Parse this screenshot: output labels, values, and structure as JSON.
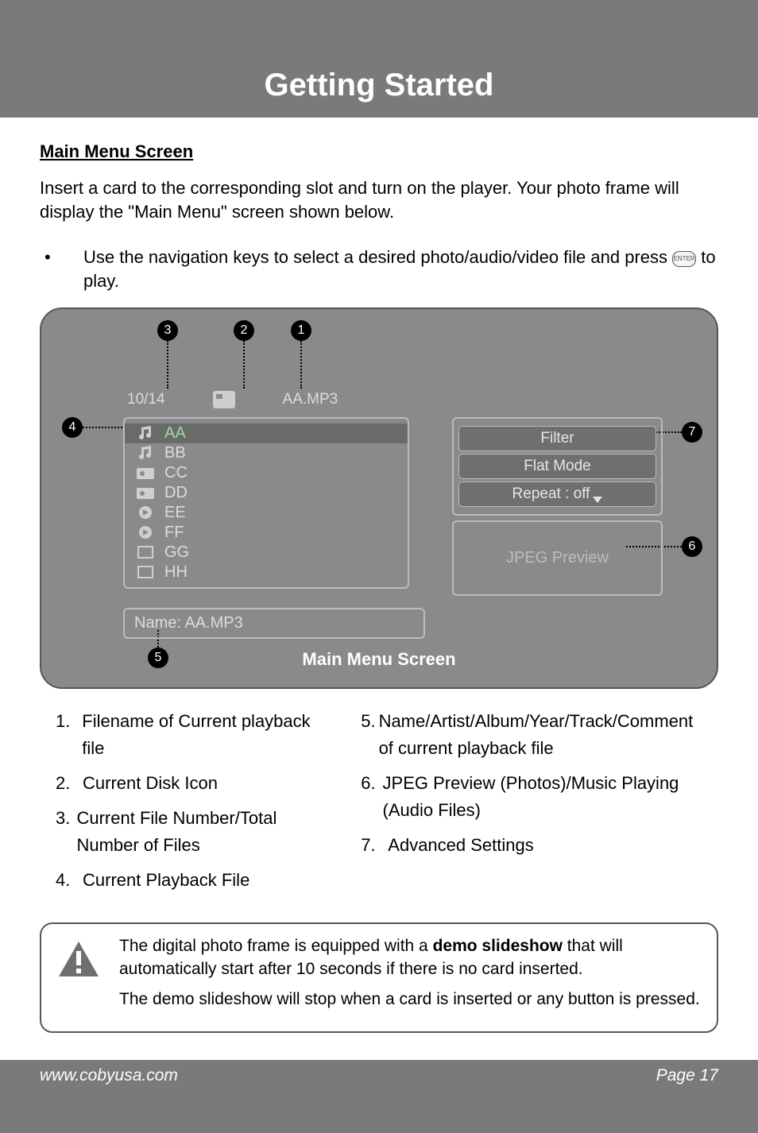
{
  "title": "Getting Started",
  "section_heading": "Main Menu Screen",
  "intro_para": "Insert a card to the corresponding slot and turn on the player. Your photo frame will display the \"Main Menu\" screen shown below.",
  "bullet_text_1": "Use the navigation keys to select a desired photo/audio/video file and press ",
  "bullet_text_2": " to play.",
  "enter_label": "ENTER",
  "device": {
    "counter": "10/14",
    "filename_top": "AA.MP3",
    "files": [
      {
        "label": "AA",
        "icon": "music",
        "selected": true
      },
      {
        "label": "BB",
        "icon": "music",
        "selected": false
      },
      {
        "label": "CC",
        "icon": "photo",
        "selected": false
      },
      {
        "label": "DD",
        "icon": "photo",
        "selected": false
      },
      {
        "label": "EE",
        "icon": "video",
        "selected": false
      },
      {
        "label": "FF",
        "icon": "video",
        "selected": false
      },
      {
        "label": "GG",
        "icon": "blank",
        "selected": false
      },
      {
        "label": "HH",
        "icon": "blank",
        "selected": false
      }
    ],
    "name_label": "Name:  AA.MP3",
    "settings": {
      "filter": "Filter",
      "flat_mode": "Flat Mode",
      "repeat": "Repeat    :  off"
    },
    "preview": "JPEG Preview",
    "caption": "Main Menu Screen",
    "callouts": [
      "1",
      "2",
      "3",
      "4",
      "5",
      "6",
      "7"
    ]
  },
  "legend_left": [
    {
      "n": "1.",
      "t": "Filename of Current playback file"
    },
    {
      "n": "2.",
      "t": "Current Disk Icon"
    },
    {
      "n": "3.",
      "t": "Current File Number/Total Number of Files"
    },
    {
      "n": "4.",
      "t": "Current Playback File"
    }
  ],
  "legend_right": [
    {
      "n": "5.",
      "t": "Name/Artist/Album/Year/Track/Comment of current playback file"
    },
    {
      "n": "6.",
      "t": "JPEG Preview (Photos)/Music Playing (Audio Files)"
    },
    {
      "n": "7.",
      "t": "Advanced Settings"
    }
  ],
  "note": {
    "p1a": "The digital photo frame is equipped with a ",
    "p1b": "demo slideshow",
    "p1c": " that will automatically start after 10 seconds if there is no card inserted.",
    "p2": "The demo slideshow will stop when a card is inserted or any button is pressed."
  },
  "footer": {
    "url": "www.cobyusa.com",
    "page": "Page 17"
  },
  "colors": {
    "band": "#7a7a7a",
    "device_bg": "#8a8a8a",
    "border": "#575757",
    "panel_border": "#bcbcbc",
    "pill_bg": "#6f6f6f",
    "text_light": "#dcdcdc",
    "sel_text": "#9fdca0"
  }
}
